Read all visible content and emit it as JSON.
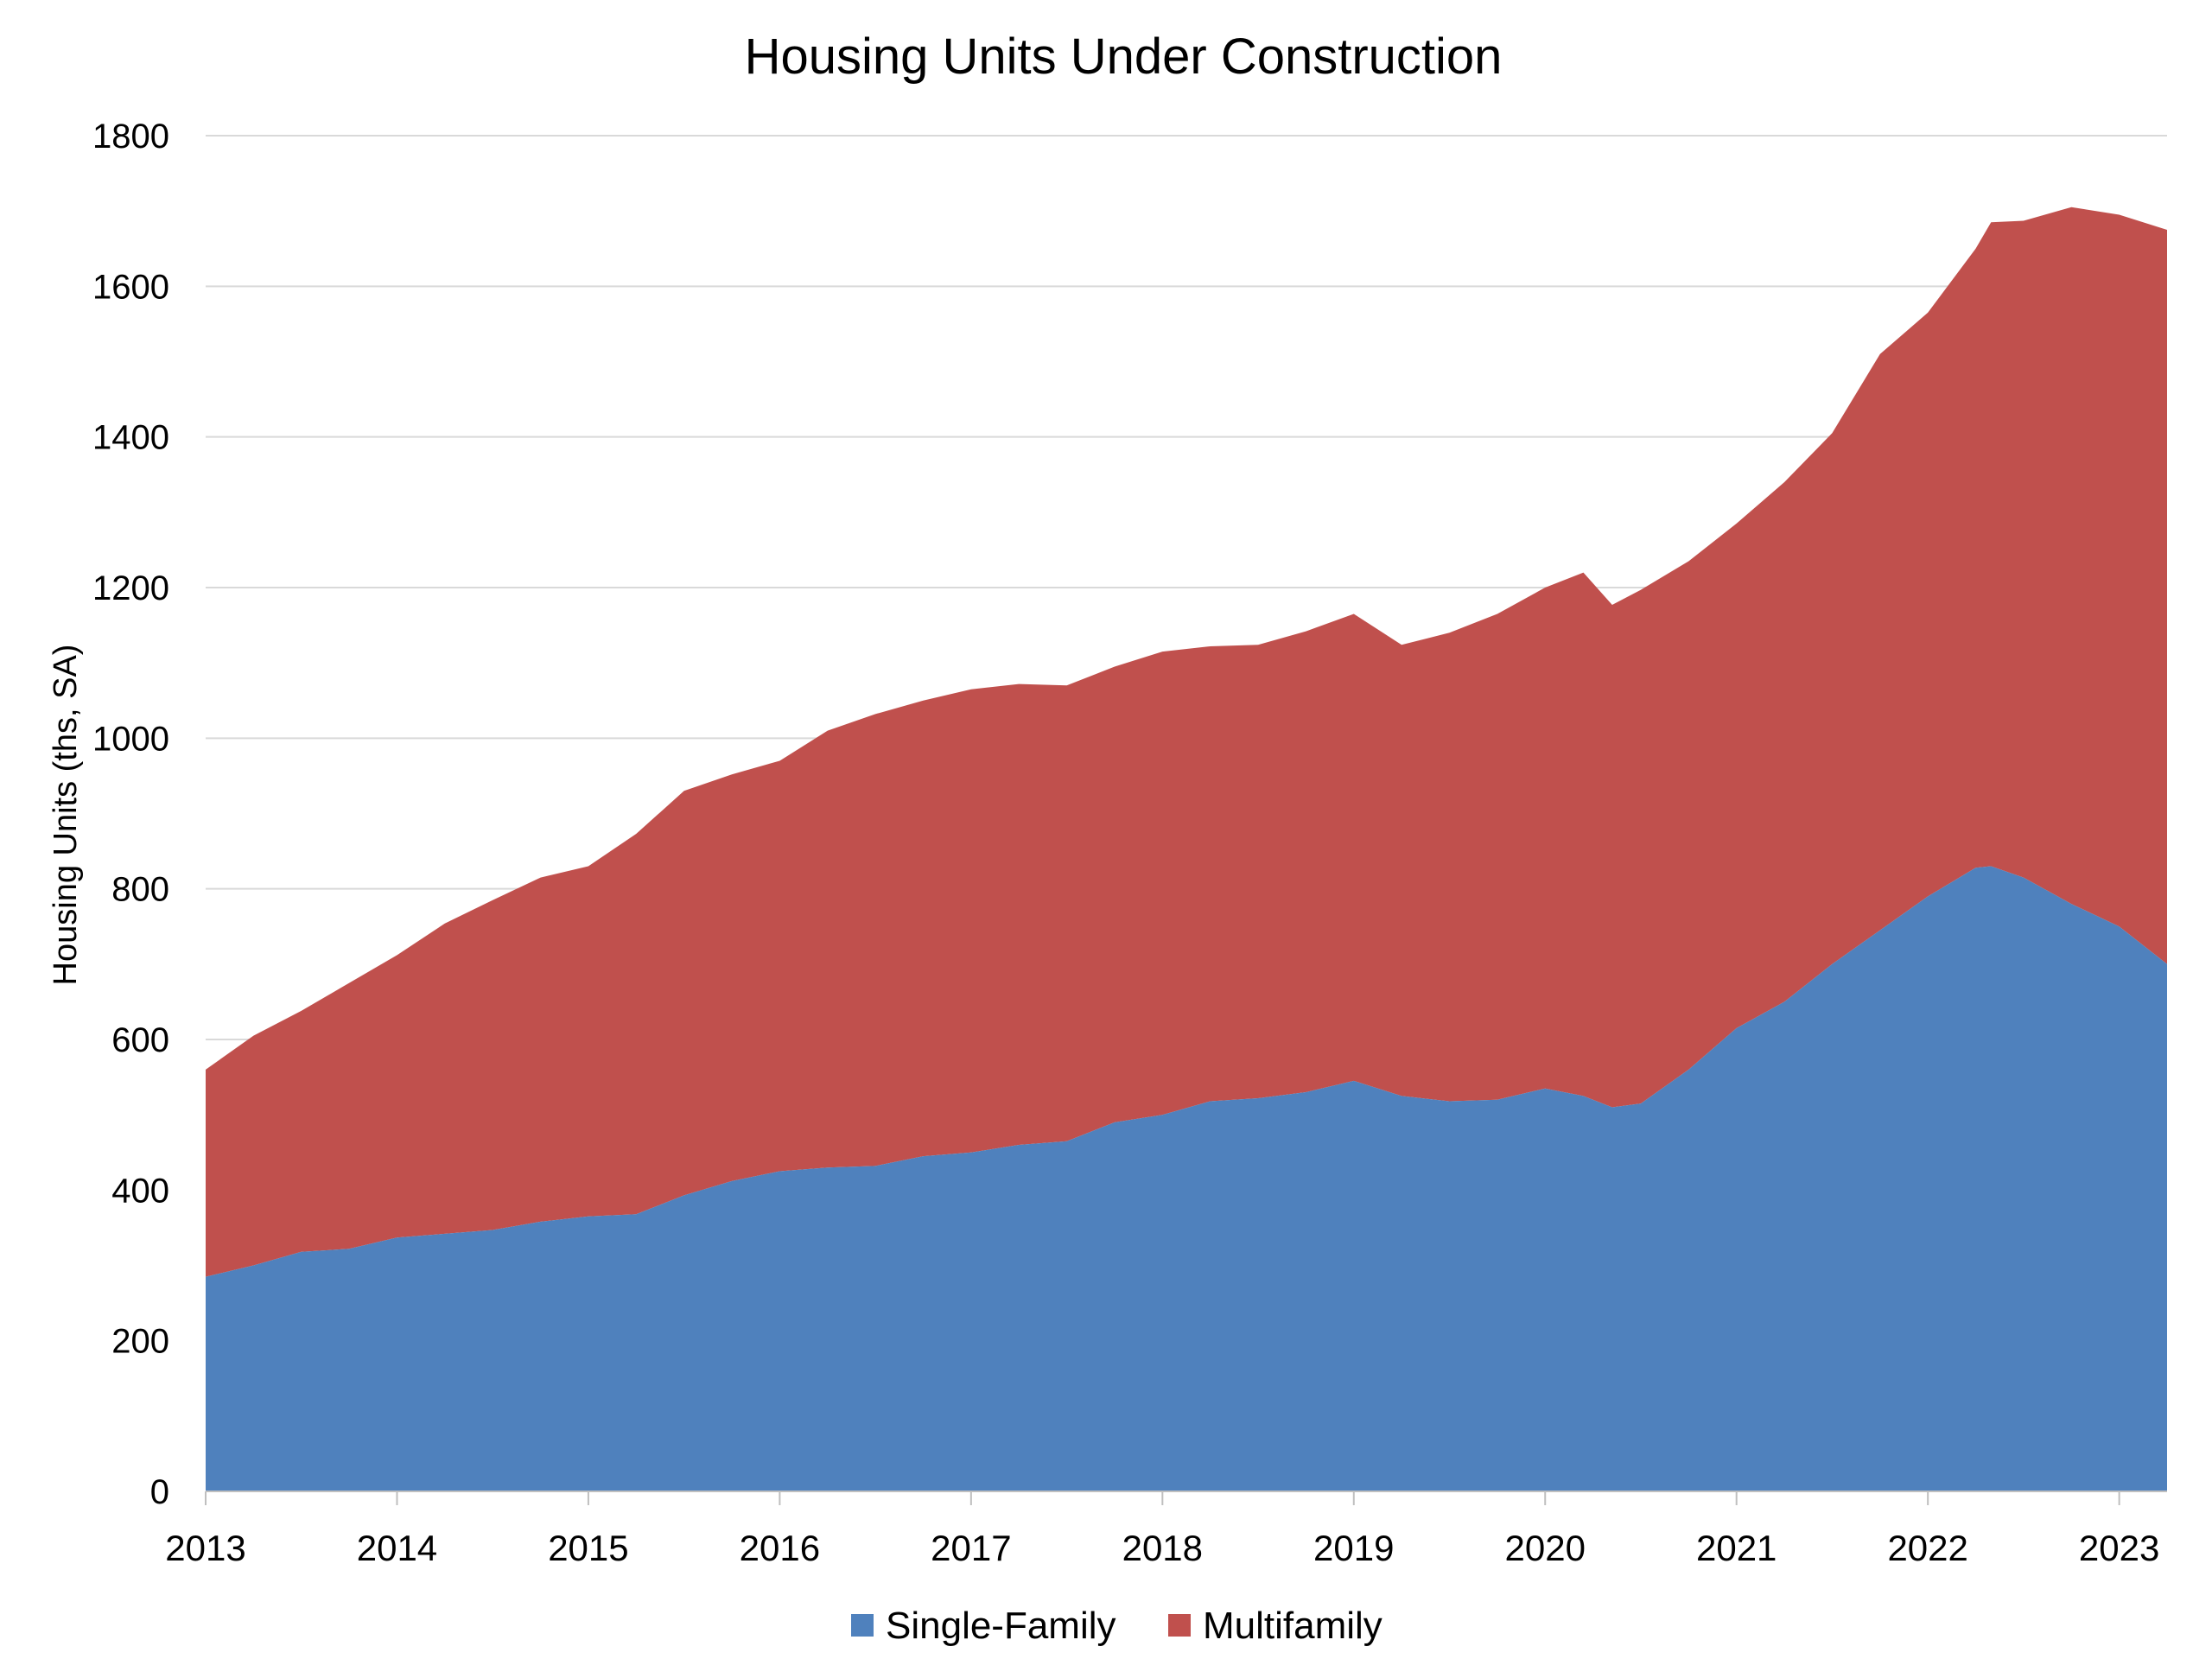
{
  "chart_data": {
    "type": "area",
    "stacked": true,
    "title": "Housing Units Under Construction",
    "xlabel": "",
    "ylabel": "Housing Units (ths, SA)",
    "ylim": [
      0,
      1800
    ],
    "yticks": [
      0,
      200,
      400,
      600,
      800,
      1000,
      1200,
      1400,
      1600,
      1800
    ],
    "xlim": [
      2013,
      2023.25
    ],
    "xticks": [
      "2013",
      "2014",
      "2015",
      "2016",
      "2017",
      "2018",
      "2019",
      "2020",
      "2021",
      "2022",
      "2023"
    ],
    "grid": "horizontal",
    "legend_position": "bottom",
    "series": [
      {
        "name": "Single-Family",
        "color": "#4f81bd",
        "x": [
          2013.0,
          2013.25,
          2013.5,
          2013.75,
          2014.0,
          2014.25,
          2014.5,
          2014.75,
          2015.0,
          2015.25,
          2015.5,
          2015.75,
          2016.0,
          2016.25,
          2016.5,
          2016.75,
          2017.0,
          2017.25,
          2017.5,
          2017.75,
          2018.0,
          2018.25,
          2018.5,
          2018.75,
          2019.0,
          2019.25,
          2019.5,
          2019.75,
          2020.0,
          2020.2,
          2020.35,
          2020.5,
          2020.75,
          2021.0,
          2021.25,
          2021.5,
          2021.75,
          2022.0,
          2022.25,
          2022.33,
          2022.5,
          2022.75,
          2023.0,
          2023.25
        ],
        "values": [
          285,
          300,
          318,
          322,
          337,
          342,
          347,
          358,
          365,
          368,
          393,
          412,
          425,
          430,
          432,
          445,
          450,
          460,
          465,
          490,
          500,
          518,
          522,
          530,
          545,
          525,
          518,
          520,
          535,
          525,
          510,
          515,
          560,
          615,
          650,
          700,
          745,
          790,
          828,
          830,
          815,
          780,
          750,
          700
        ]
      },
      {
        "name": "Multifamily",
        "color": "#c0504d",
        "x": [
          2013.0,
          2013.25,
          2013.5,
          2013.75,
          2014.0,
          2014.25,
          2014.5,
          2014.75,
          2015.0,
          2015.25,
          2015.5,
          2015.75,
          2016.0,
          2016.25,
          2016.5,
          2016.75,
          2017.0,
          2017.25,
          2017.5,
          2017.75,
          2018.0,
          2018.25,
          2018.5,
          2018.75,
          2019.0,
          2019.25,
          2019.5,
          2019.75,
          2020.0,
          2020.2,
          2020.35,
          2020.5,
          2020.75,
          2021.0,
          2021.25,
          2021.5,
          2021.75,
          2022.0,
          2022.25,
          2022.33,
          2022.5,
          2022.75,
          2023.0,
          2023.25
        ],
        "values": [
          275,
          305,
          320,
          353,
          375,
          412,
          438,
          457,
          465,
          505,
          537,
          540,
          545,
          580,
          600,
          605,
          615,
          612,
          605,
          605,
          615,
          604,
          602,
          612,
          620,
          599,
          622,
          645,
          665,
          695,
          667,
          682,
          675,
          670,
          690,
          705,
          765,
          775,
          822,
          855,
          872,
          925,
          945,
          975
        ]
      }
    ]
  }
}
